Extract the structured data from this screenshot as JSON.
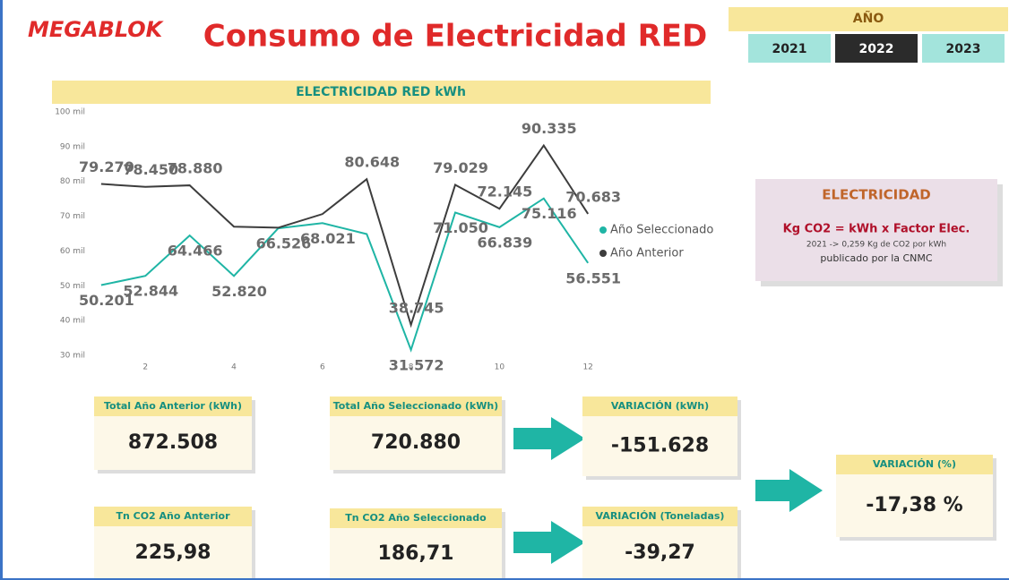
{
  "header": {
    "logo": "MEGABLOK",
    "title": "Consumo de Electricidad RED"
  },
  "year_slicer": {
    "title": "AÑO",
    "options": [
      "2021",
      "2022",
      "2023"
    ],
    "selected": 1
  },
  "chart_data": {
    "type": "line",
    "title": "ELECTRICIDAD RED kWh",
    "x": [
      1,
      2,
      3,
      4,
      5,
      6,
      7,
      8,
      9,
      10,
      11,
      12
    ],
    "xlim": [
      0.8,
      12.3
    ],
    "xticks": [
      2,
      4,
      6,
      8,
      10,
      12
    ],
    "ylim": [
      30000,
      100000
    ],
    "yticks": [
      {
        "value": 30000,
        "label": "30 mil"
      },
      {
        "value": 40000,
        "label": "40 mil"
      },
      {
        "value": 50000,
        "label": "50 mil"
      },
      {
        "value": 60000,
        "label": "60 mil"
      },
      {
        "value": 70000,
        "label": "70 mil"
      },
      {
        "value": 80000,
        "label": "80 mil"
      },
      {
        "value": 90000,
        "label": "90 mil"
      },
      {
        "value": 100000,
        "label": "100 mil"
      }
    ],
    "grid": false,
    "legend": "right",
    "series": [
      {
        "name": "Año Seleccionado",
        "color": "#1fb5a5",
        "values": [
          50201,
          52844,
          64466,
          52820,
          66526,
          68021,
          64874,
          31572,
          71050,
          66839,
          75116,
          56551
        ],
        "value_labels": [
          "50.201",
          "52.844",
          "64.466",
          "52.820",
          "66.526",
          "68.021",
          null,
          "31.572",
          "71.050",
          "66.839",
          "75.116",
          "56.551"
        ]
      },
      {
        "name": "Año Anterior",
        "color": "#3d3d3d",
        "values": [
          79270,
          78450,
          78880,
          67000,
          66700,
          70623,
          80648,
          38745,
          79029,
          72145,
          90335,
          70683
        ],
        "value_labels": [
          "79.270",
          "78.450",
          "78.880",
          null,
          null,
          null,
          "80.648",
          "38.745",
          "79.029",
          "72.145",
          "90.335",
          "70.683"
        ]
      }
    ]
  },
  "info_box": {
    "title": "ELECTRICIDAD",
    "formula": "Kg CO2 = kWh x Factor Elec.",
    "note": "2021 -> 0,259 Kg de CO2 por kWh",
    "source": "publicado por la CNMC"
  },
  "kpis": [
    {
      "label": "Total Año Anterior (kWh)",
      "value": "872.508"
    },
    {
      "label": "Total Año Seleccionado (kWh)",
      "value": "720.880"
    },
    {
      "label": "VARIACIÓN (kWh)",
      "value": "-151.628"
    },
    {
      "label": "VARIACIÓN (%)",
      "value": "-17,38 %"
    },
    {
      "label": "Tn CO2 Año Anterior",
      "value": "225,98"
    },
    {
      "label": "Tn CO2 Año Seleccionado",
      "value": "186,71"
    },
    {
      "label": "VARIACIÓN (Toneladas)",
      "value": "-39,27"
    }
  ]
}
